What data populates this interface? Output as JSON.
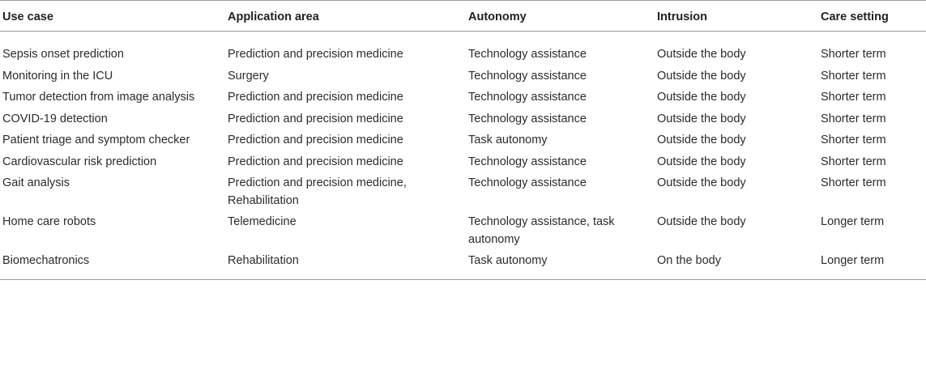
{
  "table": {
    "headers": [
      "Use case",
      "Application area",
      "Autonomy",
      "Intrusion",
      "Care setting"
    ],
    "rows": [
      [
        "Sepsis onset prediction",
        "Prediction and precision medicine",
        "Technology assistance",
        "Outside the body",
        "Shorter term"
      ],
      [
        "Monitoring in the ICU",
        "Surgery",
        "Technology assistance",
        "Outside the body",
        "Shorter term"
      ],
      [
        "Tumor detection from image analysis",
        "Prediction and precision medicine",
        "Technology assistance",
        "Outside the body",
        "Shorter term"
      ],
      [
        "COVID-19 detection",
        "Prediction and precision medicine",
        "Technology assistance",
        "Outside the body",
        "Shorter term"
      ],
      [
        "Patient triage and symptom checker",
        "Prediction and precision medicine",
        "Task autonomy",
        "Outside the body",
        "Shorter term"
      ],
      [
        "Cardiovascular risk prediction",
        "Prediction and precision medicine",
        "Technology assistance",
        "Outside the body",
        "Shorter term"
      ],
      [
        "Gait analysis",
        "Prediction and precision medicine, Rehabilitation",
        "Technology assistance",
        "Outside the body",
        "Shorter term"
      ],
      [
        "Home care robots",
        "Telemedicine",
        "Technology assistance, task autonomy",
        "Outside the body",
        "Longer term"
      ],
      [
        "Biomechatronics",
        "Rehabilitation",
        "Task autonomy",
        "On the body",
        "Longer term"
      ]
    ]
  }
}
